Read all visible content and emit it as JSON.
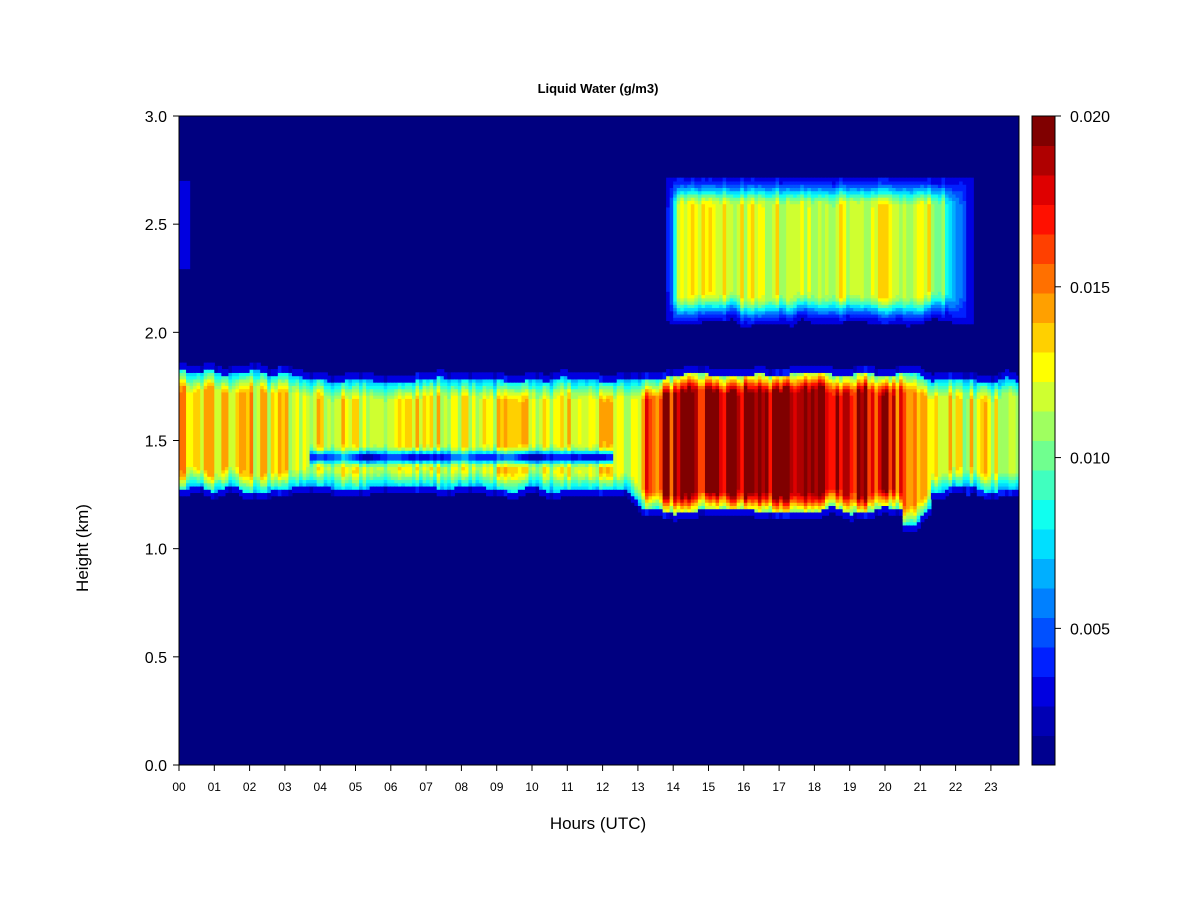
{
  "chart_data": {
    "type": "heatmap",
    "title": "Liquid Water (g/m3)",
    "xlabel": "Hours (UTC)",
    "ylabel": "Height (km)",
    "x_ticks": [
      "00",
      "01",
      "02",
      "03",
      "04",
      "05",
      "06",
      "07",
      "08",
      "09",
      "10",
      "11",
      "12",
      "13",
      "14",
      "15",
      "16",
      "17",
      "18",
      "19",
      "20",
      "21",
      "22",
      "23"
    ],
    "xlim": [
      0,
      23.9
    ],
    "ylim": [
      0,
      3.0
    ],
    "y_ticks": [
      "0.0",
      "0.5",
      "1.0",
      "1.5",
      "2.0",
      "2.5",
      "3.0"
    ],
    "colorbar": {
      "range": [
        0.001,
        0.02
      ],
      "tick_values": [
        0.005,
        0.01,
        0.015,
        0.02
      ],
      "tick_labels": [
        "0.005",
        "0.010",
        "0.015",
        "0.020"
      ],
      "colors": [
        "#00008F",
        "#0000B4",
        "#0000E0",
        "#0020FF",
        "#0050FF",
        "#0080FF",
        "#00AFFF",
        "#00DFFF",
        "#10FFEF",
        "#40FFBF",
        "#70FF8F",
        "#9FFF60",
        "#CFFF30",
        "#FFFF00",
        "#FFD000",
        "#FFA000",
        "#FF7000",
        "#FF4000",
        "#FF1000",
        "#DF0000",
        "#AF0000",
        "#800000"
      ],
      "background_color": "#000080"
    },
    "features": [
      {
        "t_start": 0.0,
        "t_end": 23.9,
        "z_bottom": 1.22,
        "z_top": 1.85,
        "peak_value": 0.014,
        "description_level": "lower cloud layer"
      },
      {
        "t_start": 12.6,
        "t_end": 21.2,
        "z_bottom": 1.12,
        "z_top": 1.88,
        "peak_value": 0.019
      },
      {
        "t_start": 13.8,
        "t_end": 22.5,
        "z_bottom": 2.03,
        "z_top": 2.72,
        "peak_value": 0.0125
      }
    ]
  }
}
